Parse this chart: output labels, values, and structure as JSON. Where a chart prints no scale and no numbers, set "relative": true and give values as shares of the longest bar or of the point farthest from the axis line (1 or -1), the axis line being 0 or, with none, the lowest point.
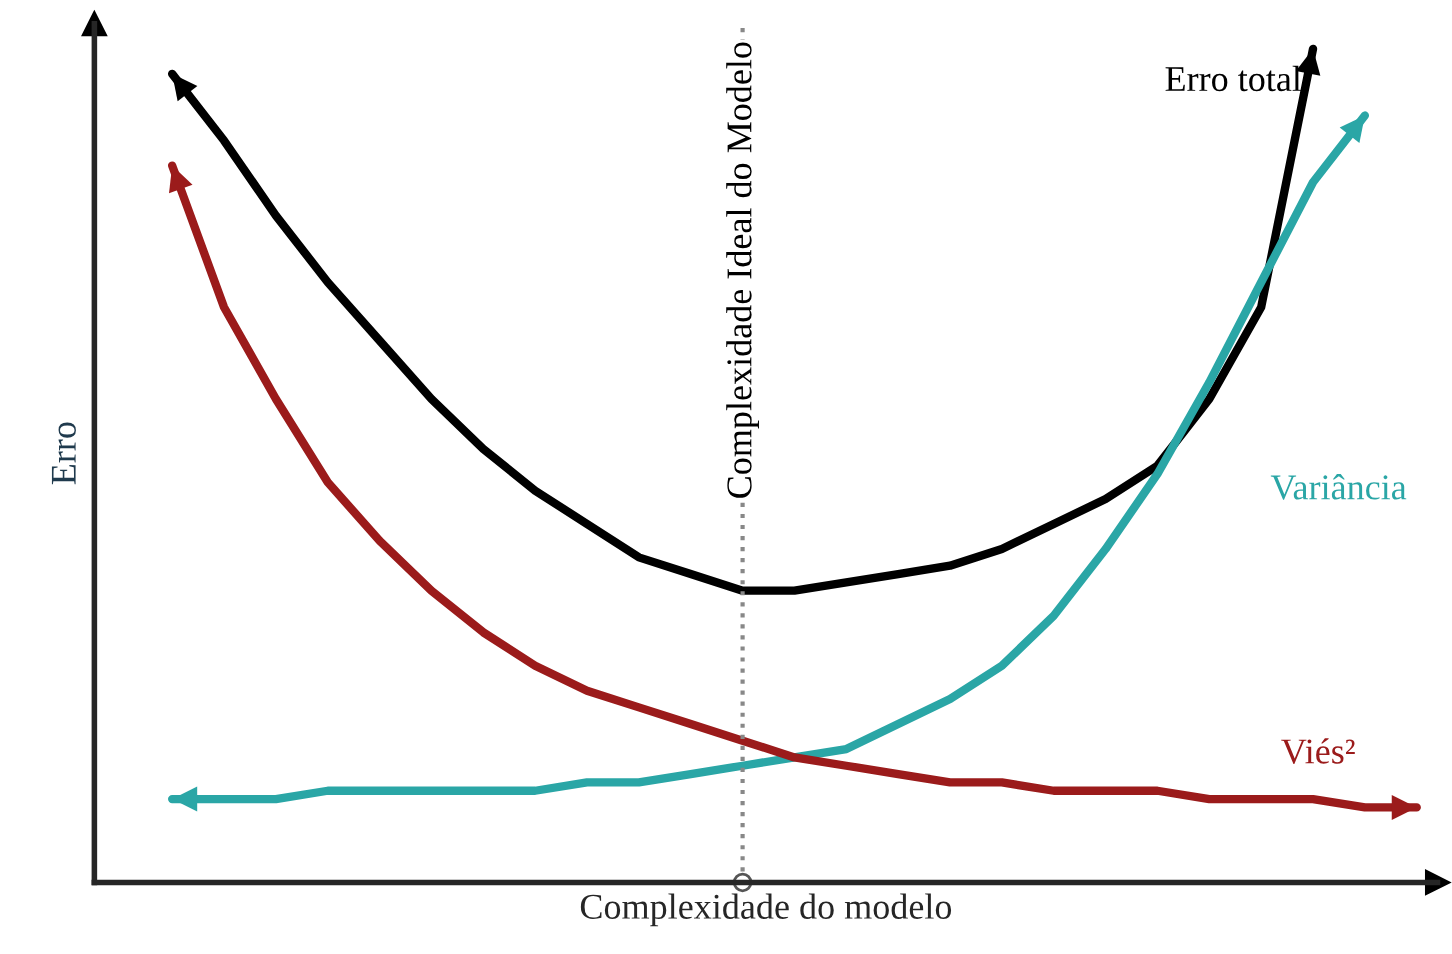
{
  "chart_data": {
    "type": "line",
    "relative": true,
    "xlabel": "Complexidade do modelo",
    "ylabel": "Erro",
    "categories": [
      null,
      null,
      null,
      null,
      null,
      null,
      null,
      null,
      null,
      null,
      null,
      null,
      null,
      null,
      null,
      null,
      null,
      null,
      null,
      null,
      null,
      null,
      null,
      null,
      null
    ],
    "series": [
      {
        "name": "Erro total",
        "color": "#000000",
        "values": [
          0.97,
          0.89,
          0.8,
          0.72,
          0.65,
          0.58,
          0.52,
          0.47,
          0.43,
          0.39,
          0.37,
          0.35,
          0.35,
          0.36,
          0.37,
          0.38,
          0.4,
          0.43,
          0.46,
          0.5,
          0.58,
          0.69,
          1.0,
          null,
          null
        ]
      },
      {
        "name": "Variância",
        "color": "#2aa6a6",
        "values": [
          0.1,
          0.1,
          0.1,
          0.11,
          0.11,
          0.11,
          0.11,
          0.11,
          0.12,
          0.12,
          0.13,
          0.14,
          0.15,
          0.16,
          0.19,
          0.22,
          0.26,
          0.32,
          0.4,
          0.49,
          0.6,
          0.72,
          0.84,
          0.92,
          null
        ]
      },
      {
        "name": "Viés²",
        "color": "#9b1b1b",
        "values": [
          0.86,
          0.69,
          0.58,
          0.48,
          0.41,
          0.35,
          0.3,
          0.26,
          0.23,
          0.21,
          0.19,
          0.17,
          0.15,
          0.14,
          0.13,
          0.12,
          0.12,
          0.11,
          0.11,
          0.11,
          0.1,
          0.1,
          0.1,
          0.09,
          0.09
        ]
      }
    ],
    "annotations": [
      "Complexidade Ideal do Modelo"
    ],
    "legend": "right"
  }
}
